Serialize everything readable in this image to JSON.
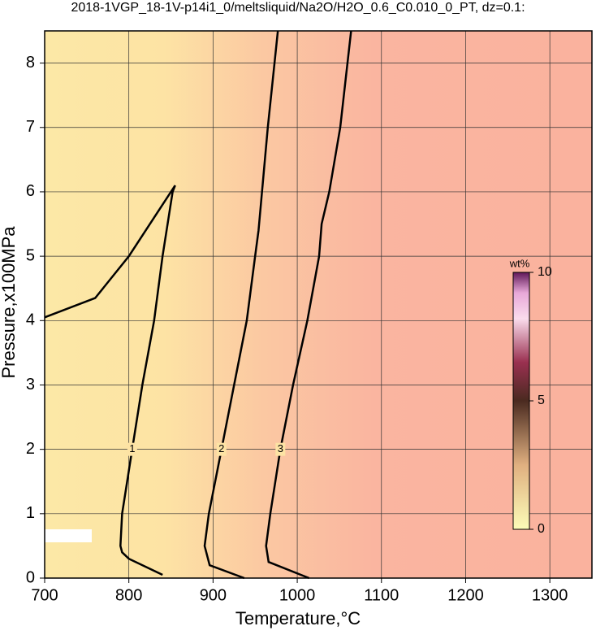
{
  "chart_data": {
    "type": "contour",
    "title": "2018-1VGP_18-1V-p14i1_0/meltsliquid/Na2O/H2O_0.6_C0.010_0_PT, dz=0.1:",
    "x_label": "Temperature,°C",
    "y_label": "Pressure,x100MPa",
    "xlim": [
      700,
      1350
    ],
    "ylim": [
      0,
      8.5
    ],
    "xticks": [
      700,
      800,
      900,
      1000,
      1100,
      1200,
      1300
    ],
    "yticks": [
      0,
      1,
      2,
      3,
      4,
      5,
      6,
      7,
      8
    ],
    "grid": true,
    "contours": [
      {
        "level": 1,
        "x": [
          700,
          760,
          800,
          830,
          855,
          852,
          840,
          830,
          816,
          804,
          792,
          790,
          792,
          800,
          840
        ],
        "y": [
          4.05,
          4.35,
          5.0,
          5.6,
          6.1,
          6.0,
          5.0,
          4.0,
          3.0,
          2.0,
          1.0,
          0.5,
          0.4,
          0.3,
          0.05
        ]
      },
      {
        "level": 2,
        "x": [
          977,
          965,
          954,
          950,
          940,
          925,
          910,
          895,
          890,
          896,
          937
        ],
        "y": [
          8.5,
          7.0,
          5.4,
          5.0,
          4.0,
          3.0,
          2.0,
          1.0,
          0.5,
          0.2,
          0.0
        ]
      },
      {
        "level": 3,
        "x": [
          1064,
          1051,
          1038,
          1029,
          1026,
          1012,
          995,
          980,
          968,
          963,
          966,
          1014
        ],
        "y": [
          8.5,
          7.0,
          6.0,
          5.5,
          5.0,
          4.0,
          3.0,
          2.0,
          1.0,
          0.5,
          0.25,
          0.0
        ]
      }
    ],
    "colorbar": {
      "label": "wt%",
      "lim": [
        0,
        10
      ],
      "ticks": [
        0,
        5,
        10
      ]
    }
  }
}
